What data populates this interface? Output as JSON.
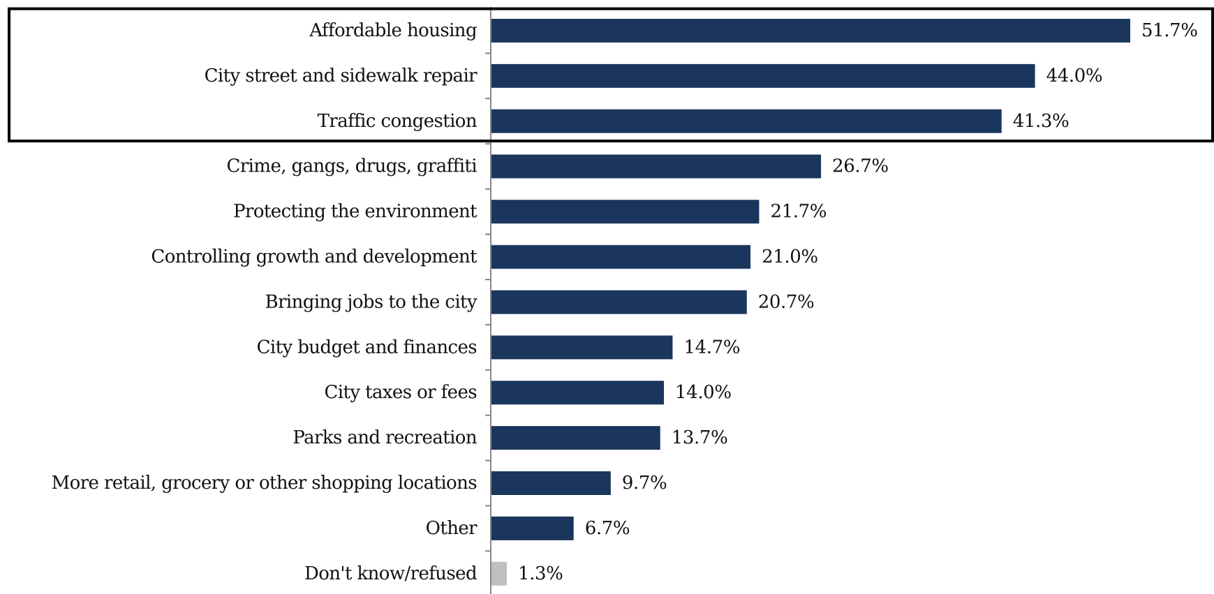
{
  "colors": {
    "bar": "#1b365d",
    "bar_muted": "#bfbfbf",
    "axis": "#888888",
    "highlight_box": "#000000"
  },
  "chart_data": {
    "type": "bar",
    "orientation": "horizontal",
    "categories": [
      "Affordable housing",
      "City street and sidewalk repair",
      "Traffic congestion",
      "Crime, gangs, drugs, graffiti",
      "Protecting the environment",
      "Controlling growth and development",
      "Bringing jobs to the city",
      "City budget and finances",
      "City taxes or fees",
      "Parks and recreation",
      "More retail, grocery or other shopping locations",
      "Other",
      "Don't know/refused"
    ],
    "values": [
      51.7,
      44.0,
      41.3,
      26.7,
      21.7,
      21.0,
      20.7,
      14.7,
      14.0,
      13.7,
      9.7,
      6.7,
      1.3
    ],
    "value_labels": [
      "51.7%",
      "44.0%",
      "41.3%",
      "26.7%",
      "21.7%",
      "21.0%",
      "20.7%",
      "14.7%",
      "14.0%",
      "13.7%",
      "9.7%",
      "6.7%",
      "1.3%"
    ],
    "muted_categories": [
      "Don't know/refused"
    ],
    "highlighted_categories": [
      "Affordable housing",
      "City street and sidewalk repair",
      "Traffic congestion"
    ],
    "xlim": [
      0,
      55
    ],
    "title": "",
    "xlabel": "",
    "ylabel": "",
    "grid": false,
    "legend": "none"
  }
}
